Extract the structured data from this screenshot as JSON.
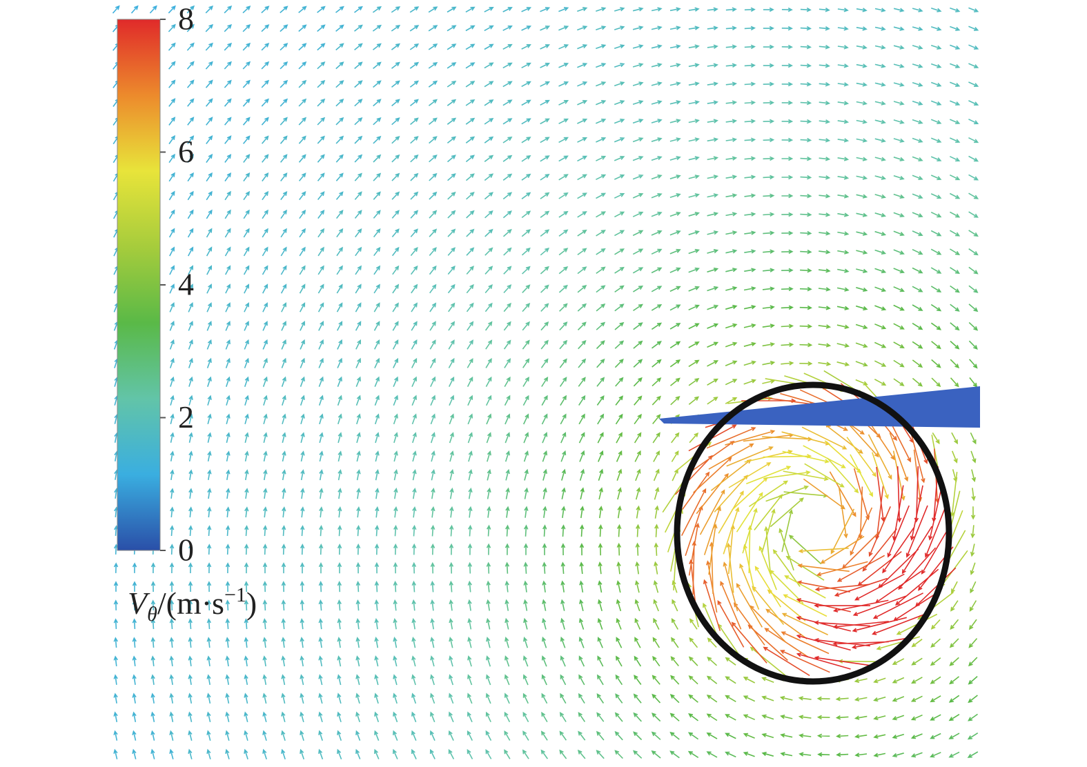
{
  "chart_data": {
    "type": "colorbar",
    "label": {
      "symbol": "V",
      "subscript": "θ",
      "unit": "/(m·s",
      "exponent": "−1",
      "close": ")"
    },
    "lim": [
      0,
      8
    ],
    "ticks": [
      0,
      2,
      4,
      6,
      8
    ],
    "colors": [
      "#2a4fa8",
      "#3aaee0",
      "#62c4a8",
      "#5ab947",
      "#a6cc3c",
      "#e8e43a",
      "#ec8a2c",
      "#e02a2a"
    ]
  }
}
